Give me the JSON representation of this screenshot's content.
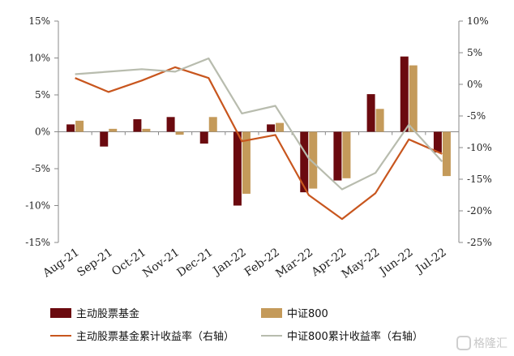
{
  "chart_data": {
    "type": "bar",
    "categories": [
      "Aug-21",
      "Sep-21",
      "Oct-21",
      "Nov-21",
      "Dec-21",
      "Jan-22",
      "Feb-22",
      "Mar-22",
      "Apr-22",
      "May-22",
      "Jun-22",
      "Jul-22"
    ],
    "left_axis": {
      "ylim": [
        -15,
        15
      ],
      "ticks": [
        15,
        10,
        5,
        0,
        -5,
        -10,
        -15
      ],
      "labels": [
        "15%",
        "10%",
        "5%",
        "0%",
        "-5%",
        "-10%",
        "-15%"
      ]
    },
    "right_axis": {
      "ylim": [
        -25,
        10
      ],
      "ticks": [
        10,
        5,
        0,
        -5,
        -10,
        -15,
        -20,
        -25
      ],
      "labels": [
        "10%",
        "5%",
        "0%",
        "-5%",
        "-10%",
        "-15%",
        "-20%",
        "-25%"
      ]
    },
    "bar_series": [
      {
        "name": "主动股票基金",
        "color": "#6b0a0f",
        "values": [
          1.0,
          -2.0,
          1.7,
          2.0,
          -1.6,
          -10.0,
          1.0,
          -8.2,
          -6.6,
          5.1,
          10.2,
          -2.8
        ]
      },
      {
        "name": "中证800",
        "color": "#c49a5a",
        "values": [
          1.5,
          0.4,
          0.4,
          -0.4,
          2.0,
          -8.4,
          1.2,
          -7.7,
          -6.3,
          3.1,
          9.0,
          -6.0
        ]
      }
    ],
    "line_series": [
      {
        "name": "主动股票基金累计收益率（右轴）",
        "color": "#c8561e",
        "values": [
          1.0,
          -1.2,
          0.6,
          2.7,
          1.0,
          -9.0,
          -8.0,
          -17.5,
          -21.3,
          -17.2,
          -8.7,
          -11.0
        ]
      },
      {
        "name": "中证800累计收益率（右轴）",
        "color": "#b8bcae",
        "values": [
          1.6,
          2.0,
          2.4,
          2.0,
          4.1,
          -4.6,
          -3.4,
          -11.7,
          -16.6,
          -14.0,
          -6.4,
          -12.2
        ]
      }
    ]
  },
  "watermark": {
    "text": "格隆汇"
  }
}
